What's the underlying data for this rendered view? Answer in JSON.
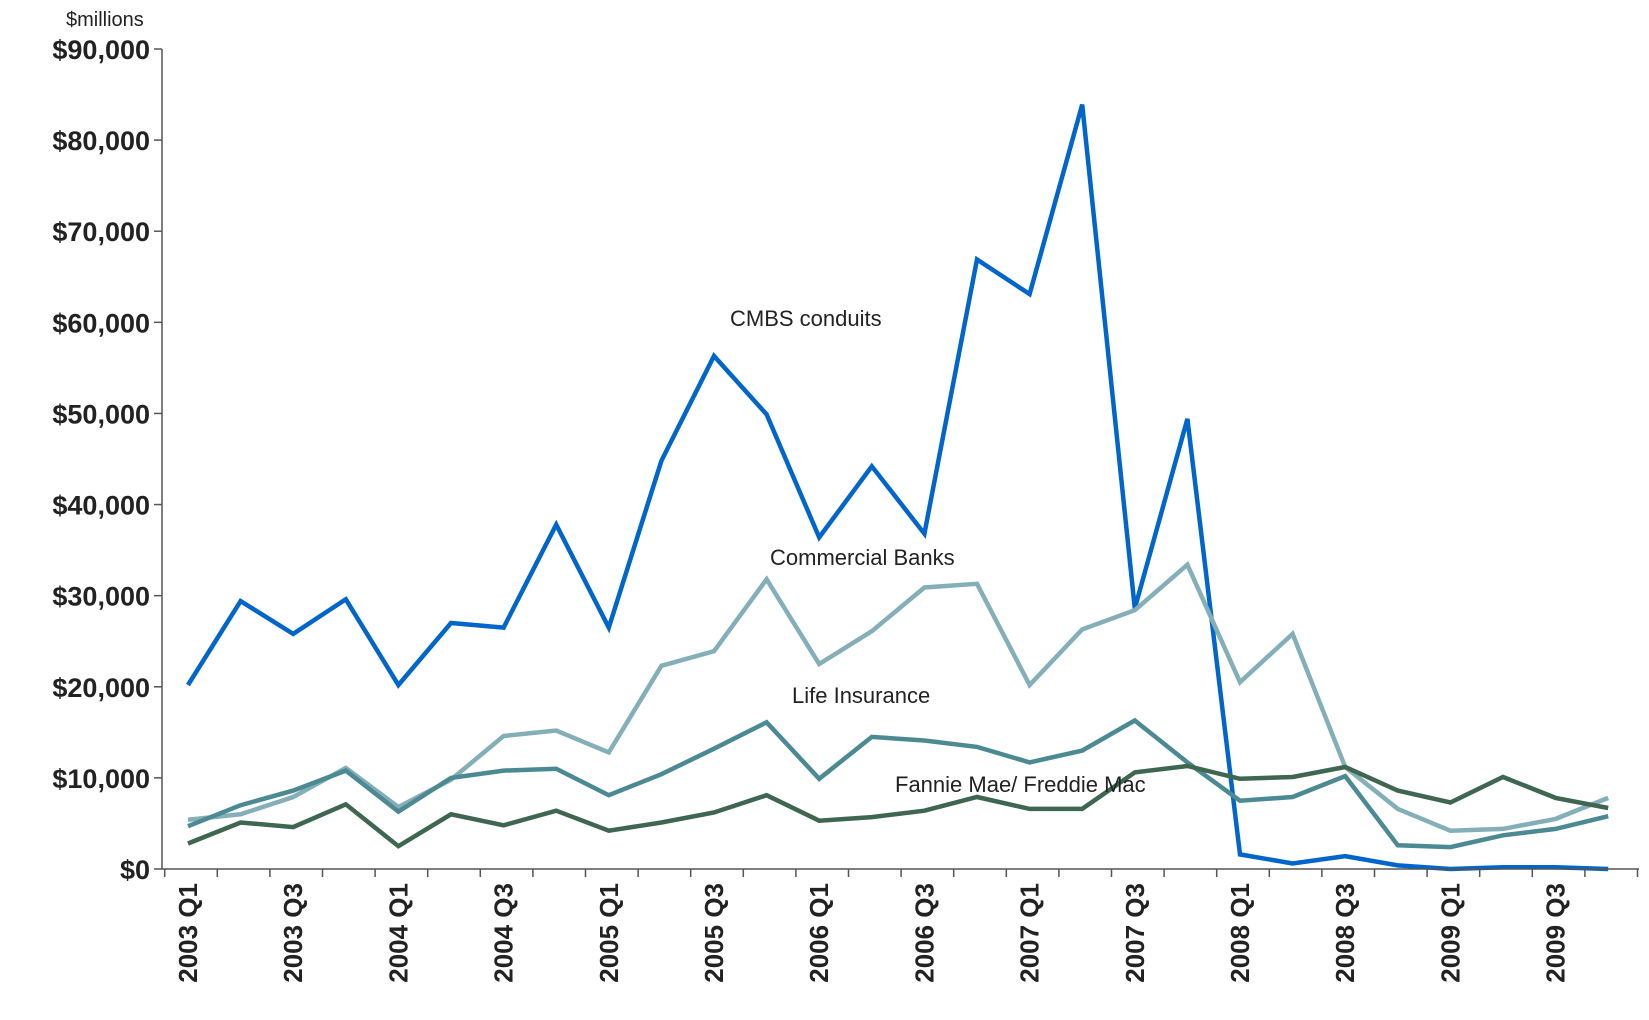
{
  "chart_data": {
    "type": "line",
    "unit_label": "$millions",
    "ylim": [
      0,
      90000
    ],
    "yticks": [
      {
        "value": 0,
        "label": "$0"
      },
      {
        "value": 10000,
        "label": "$10,000"
      },
      {
        "value": 20000,
        "label": "$20,000"
      },
      {
        "value": 30000,
        "label": "$30,000"
      },
      {
        "value": 40000,
        "label": "$40,000"
      },
      {
        "value": 50000,
        "label": "$50,000"
      },
      {
        "value": 60000,
        "label": "$60,000"
      },
      {
        "value": 70000,
        "label": "$70,000"
      },
      {
        "value": 80000,
        "label": "$80,000"
      },
      {
        "value": 90000,
        "label": "$90,000"
      }
    ],
    "categories": [
      "2003 Q1",
      "2003 Q2",
      "2003 Q3",
      "2003 Q4",
      "2004 Q1",
      "2004 Q2",
      "2004 Q3",
      "2004 Q4",
      "2005 Q1",
      "2005 Q2",
      "2005 Q3",
      "2005 Q4",
      "2006 Q1",
      "2006 Q2",
      "2006 Q3",
      "2006 Q4",
      "2007 Q1",
      "2007 Q2",
      "2007 Q3",
      "2007 Q4",
      "2008 Q1",
      "2008 Q2",
      "2008 Q3",
      "2008 Q4",
      "2009 Q1",
      "2009 Q2",
      "2009 Q3",
      "2009 Q4"
    ],
    "x_tick_labels": [
      "2003 Q1",
      "2003 Q3",
      "2004 Q1",
      "2004 Q3",
      "2005 Q1",
      "2005 Q3",
      "2006 Q1",
      "2006 Q3",
      "2007 Q1",
      "2007 Q3",
      "2008 Q1",
      "2008 Q3",
      "2009 Q1",
      "2009 Q3"
    ],
    "grid": false,
    "legend": "none",
    "series": [
      {
        "name": "CMBS conduits",
        "color": "#0066cc",
        "values": [
          20200,
          29400,
          25800,
          29600,
          20200,
          27000,
          26500,
          37800,
          26500,
          44800,
          56300,
          49900,
          36400,
          44200,
          36800,
          66900,
          63100,
          83900,
          28600,
          49400,
          1600,
          600,
          1400,
          400,
          0,
          200,
          200,
          0
        ]
      },
      {
        "name": "Commercial Banks",
        "color": "#84afb9",
        "values": [
          5400,
          6000,
          7900,
          11100,
          6800,
          9800,
          14600,
          15200,
          12800,
          22300,
          23900,
          31800,
          22500,
          26100,
          30900,
          31300,
          20200,
          26300,
          28400,
          33400,
          20500,
          25800,
          11200,
          6600,
          4200,
          4400,
          5500,
          7800
        ]
      },
      {
        "name": "Life Insurance",
        "color": "#4b8a92",
        "values": [
          4700,
          7000,
          8600,
          10800,
          6300,
          10000,
          10800,
          11000,
          8100,
          10400,
          13200,
          16100,
          9900,
          14500,
          14100,
          13400,
          11700,
          13000,
          16300,
          11700,
          7500,
          7900,
          10200,
          2600,
          2400,
          3700,
          4400,
          5800
        ]
      },
      {
        "name": "Fannie Mae/ Freddie Mac",
        "color": "#3e6651",
        "values": [
          2800,
          5100,
          4600,
          7100,
          2500,
          6000,
          4800,
          6400,
          4200,
          5100,
          6200,
          8100,
          5300,
          5700,
          6400,
          7900,
          6600,
          6600,
          10600,
          11300,
          9900,
          10100,
          11200,
          8600,
          7300,
          10100,
          7800,
          6700
        ]
      }
    ],
    "annotations": [
      "CMBS conduits",
      "Commercial Banks",
      "Life Insurance",
      "Fannie Mae/ Freddie Mac"
    ]
  }
}
